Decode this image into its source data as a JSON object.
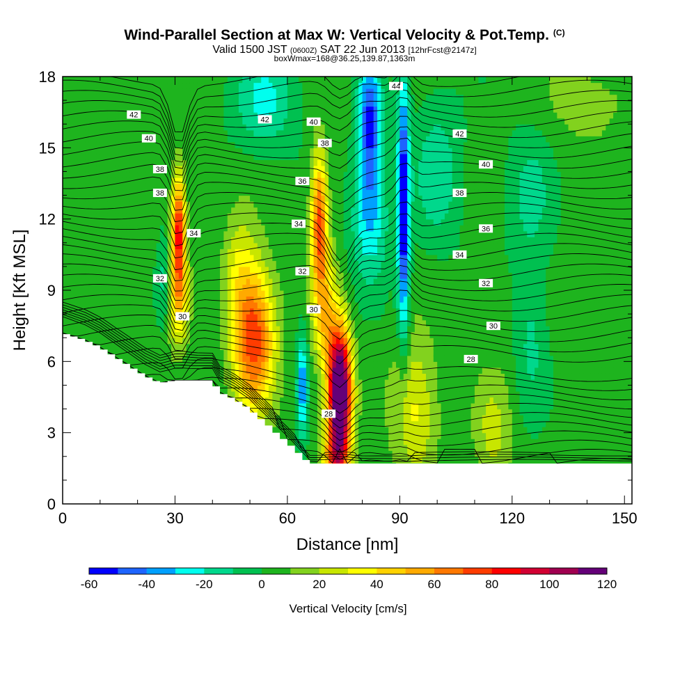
{
  "chart_data": {
    "type": "heatmap",
    "title": "Wind-Parallel Section at Max W: Vertical Velocity & Pot.Temp.",
    "title_mark": "(C)",
    "subtitle": {
      "prefix": "Valid 1500 JST",
      "utc": "(0600Z)",
      "date": "SAT 22 Jun 2013",
      "forecast": "[12hrFcst@2147z]"
    },
    "subtitle2": "boxWmax=168@36.25,139.87,1363m",
    "xlabel": "Distance [nm]",
    "ylabel": "Height [Kft MSL]",
    "xlim": [
      0,
      152
    ],
    "ylim": [
      0,
      18
    ],
    "xticks": [
      0,
      30,
      60,
      90,
      120,
      150
    ],
    "yticks": [
      0,
      3,
      6,
      9,
      12,
      15,
      18
    ],
    "colorbar": {
      "label": "Vertical Velocity [cm/s]",
      "ticks": [
        -60,
        -40,
        -20,
        0,
        20,
        40,
        60,
        80,
        100,
        120
      ],
      "levels": [
        -60,
        -50,
        -40,
        -30,
        -20,
        -10,
        0,
        10,
        20,
        30,
        40,
        50,
        60,
        70,
        80,
        90,
        100,
        110,
        120
      ],
      "colors": [
        "#0000ff",
        "#1e64ff",
        "#00a0ff",
        "#00ffee",
        "#00d88c",
        "#00c050",
        "#1eb41e",
        "#82d21e",
        "#c8e600",
        "#ffff00",
        "#ffd200",
        "#ffaa00",
        "#ff7800",
        "#ff3c00",
        "#ff0000",
        "#d20032",
        "#a00050",
        "#640078"
      ]
    },
    "terrain_profile": {
      "x": [
        0,
        6,
        10,
        14,
        18,
        22,
        26,
        30,
        40,
        42,
        46,
        50,
        52,
        55,
        57,
        60,
        64,
        66,
        152
      ],
      "h": [
        2.0,
        1.7,
        1.4,
        1.0,
        0.6,
        0.2,
        -0.1,
        0,
        0,
        -0.5,
        -0.8,
        -1.2,
        -1.5,
        -1.9,
        -2.2,
        -2.6,
        -3.2,
        -3.5,
        -3.5
      ],
      "base_kft": 5.2
    },
    "w_features": [
      {
        "x": 74,
        "z": 4.8,
        "sx": 3.0,
        "sz": 2.6,
        "w": 140
      },
      {
        "x": 73,
        "z": 1.8,
        "sx": 3.5,
        "sz": 1.8,
        "w": 60
      },
      {
        "x": 51,
        "z": 7.0,
        "sx": 5.5,
        "sz": 3.0,
        "w": 75
      },
      {
        "x": 47,
        "z": 10.0,
        "sx": 4.0,
        "sz": 2.5,
        "w": 20
      },
      {
        "x": 31,
        "z": 11.5,
        "sx": 1.8,
        "sz": 2.3,
        "w": 80
      },
      {
        "x": 31,
        "z": 8.5,
        "sx": 2.6,
        "sz": 2.0,
        "w": 40
      },
      {
        "x": 68.5,
        "z": 12.0,
        "sx": 2.2,
        "sz": 2.8,
        "w": 70
      },
      {
        "x": 70,
        "z": 8.0,
        "sx": 3.2,
        "sz": 2.6,
        "w": 40
      },
      {
        "x": 94,
        "z": 4.0,
        "sx": 6.0,
        "sz": 3.0,
        "w": 30
      },
      {
        "x": 115,
        "z": 3.0,
        "sx": 5.0,
        "sz": 2.5,
        "w": 20
      },
      {
        "x": 64,
        "z": 5.0,
        "sx": 1.4,
        "sz": 2.2,
        "w": -40
      },
      {
        "x": 82,
        "z": 16.0,
        "sx": 3.0,
        "sz": 3.0,
        "w": -55
      },
      {
        "x": 91,
        "z": 12.5,
        "sx": 1.6,
        "sz": 5.5,
        "w": -65
      },
      {
        "x": 82,
        "z": 12.0,
        "sx": 5.0,
        "sz": 2.5,
        "w": -30
      },
      {
        "x": 54,
        "z": 17.0,
        "sx": 8.0,
        "sz": 2.0,
        "w": -25
      },
      {
        "x": 27,
        "z": 9.5,
        "sx": 1.5,
        "sz": 2.0,
        "w": -15
      },
      {
        "x": 125,
        "z": 7.0,
        "sx": 4.0,
        "sz": 3.0,
        "w": -15
      },
      {
        "x": 125,
        "z": 13.0,
        "sx": 6.0,
        "sz": 3.0,
        "w": -15
      },
      {
        "x": 100,
        "z": 14.0,
        "sx": 6.0,
        "sz": 3.0,
        "w": -20
      },
      {
        "x": 140,
        "z": 17.0,
        "sx": 12.0,
        "sz": 2.0,
        "w": 12
      }
    ],
    "theta_contours": {
      "levels": [
        28,
        30,
        32,
        34,
        36,
        38,
        40,
        42,
        44
      ],
      "labels": [
        {
          "text": "42",
          "x": 19,
          "y": 16.4
        },
        {
          "text": "40",
          "x": 23,
          "y": 15.4
        },
        {
          "text": "38",
          "x": 26,
          "y": 14.1
        },
        {
          "text": "38",
          "x": 26,
          "y": 13.1
        },
        {
          "text": "34",
          "x": 35,
          "y": 11.4
        },
        {
          "text": "32",
          "x": 26,
          "y": 9.5
        },
        {
          "text": "30",
          "x": 32,
          "y": 7.9
        },
        {
          "text": "42",
          "x": 54,
          "y": 16.2
        },
        {
          "text": "40",
          "x": 67,
          "y": 16.1
        },
        {
          "text": "38",
          "x": 70,
          "y": 15.2
        },
        {
          "text": "36",
          "x": 64,
          "y": 13.6
        },
        {
          "text": "34",
          "x": 63,
          "y": 11.8
        },
        {
          "text": "32",
          "x": 64,
          "y": 9.8
        },
        {
          "text": "30",
          "x": 67,
          "y": 8.2
        },
        {
          "text": "28",
          "x": 71,
          "y": 3.8
        },
        {
          "text": "44",
          "x": 89,
          "y": 17.6
        },
        {
          "text": "42",
          "x": 106,
          "y": 15.6
        },
        {
          "text": "40",
          "x": 113,
          "y": 14.3
        },
        {
          "text": "38",
          "x": 106,
          "y": 13.1
        },
        {
          "text": "36",
          "x": 113,
          "y": 11.6
        },
        {
          "text": "34",
          "x": 106,
          "y": 10.5
        },
        {
          "text": "32",
          "x": 113,
          "y": 9.3
        },
        {
          "text": "30",
          "x": 115,
          "y": 7.5
        },
        {
          "text": "28",
          "x": 109,
          "y": 6.1
        }
      ]
    }
  }
}
